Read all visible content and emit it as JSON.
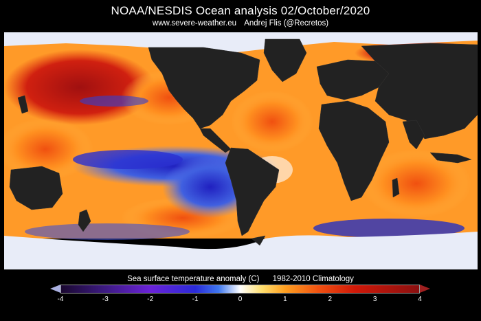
{
  "header": {
    "title": "NOAA/NESDIS Ocean analysis  02/October/2020",
    "website": "www.severe-weather.eu",
    "author": "Andrej Flis (@Recretos)"
  },
  "map": {
    "land_color": "#222222",
    "ice_color": "#e8ecf8"
  },
  "colorbar": {
    "label": "Sea surface temperature anomaly (C)",
    "climatology": "1982-2010 Climatology",
    "ticks": [
      "-4",
      "-3",
      "-2",
      "-1",
      "0",
      "1",
      "2",
      "3",
      "4"
    ],
    "min": -4,
    "max": 4,
    "colors": {
      "cold_extreme": "#1a0830",
      "cold": "#2a2ad8",
      "neutral": "#ffffff",
      "warm": "#ffa020",
      "warm_extreme": "#8a1010"
    }
  }
}
